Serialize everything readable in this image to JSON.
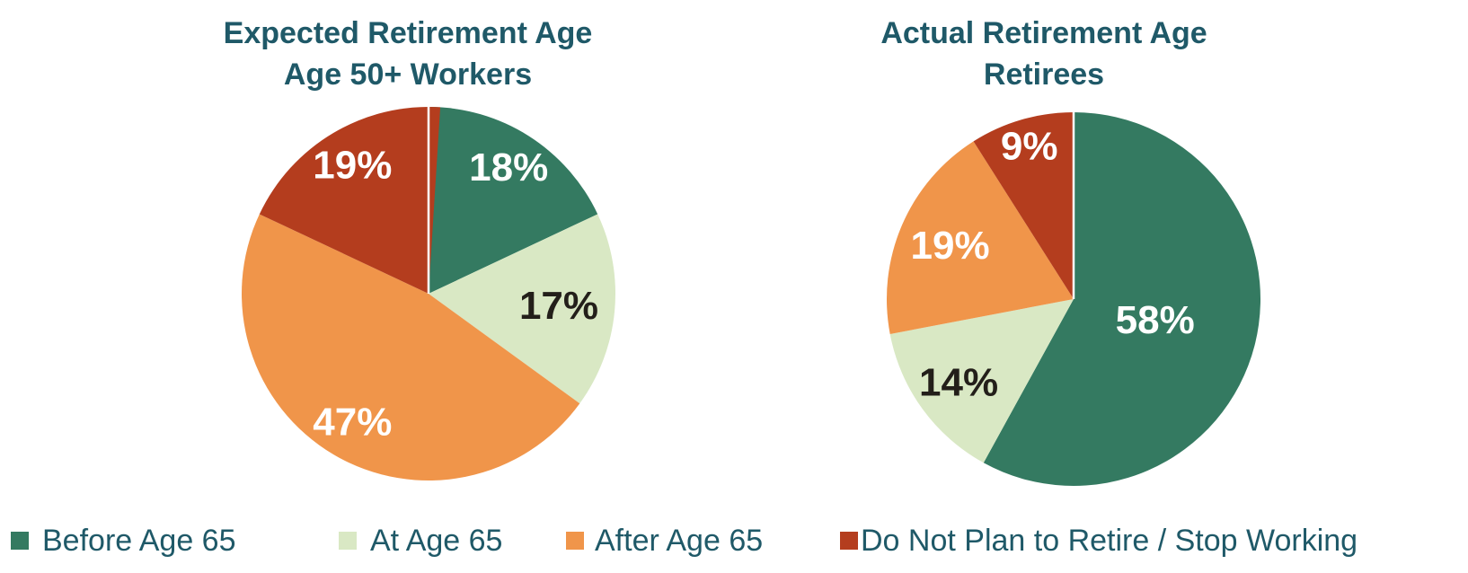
{
  "theme": {
    "background": "#FFFFFF",
    "title_color": "#1F5968",
    "legend_text_color": "#1F5968",
    "dark_label_color": "#231F1A",
    "light_label_color": "#FFFFFF"
  },
  "chart_data": [
    {
      "type": "pie",
      "title": "Expected Retirement Age",
      "subtitle": "Age 50+ Workers",
      "start_angle_deg": 0,
      "direction": "clockwise",
      "legend_position": "bottom",
      "slices": [
        {
          "label": "Before Age 65",
          "value_pct": 18,
          "data_label": "18%",
          "color": "#347A61",
          "label_color": "#FFFFFF",
          "label_radius_frac": 0.8
        },
        {
          "label": "At Age 65",
          "value_pct": 17,
          "data_label": "17%",
          "color": "#D9E8C4",
          "label_color": "#231F1A",
          "label_radius_frac": 0.7
        },
        {
          "label": "After Age 65",
          "value_pct": 47,
          "data_label": "47%",
          "color": "#F0954A",
          "label_color": "#FFFFFF",
          "label_radius_frac": 0.8
        },
        {
          "label": "Do Not Plan to Retire / Stop Working",
          "value_pct": 19,
          "data_label": "19%",
          "color": "#B43D1E",
          "label_color": "#FFFFFF",
          "label_radius_frac": 0.8
        }
      ]
    },
    {
      "type": "pie",
      "title": "Actual Retirement Age",
      "subtitle": "Retirees",
      "start_angle_deg": 0,
      "direction": "clockwise",
      "legend_position": "bottom",
      "slices": [
        {
          "label": "Before Age 65",
          "value_pct": 58,
          "data_label": "58%",
          "color": "#347A61",
          "label_color": "#FFFFFF",
          "label_radius_frac": 0.45
        },
        {
          "label": "At Age 65",
          "value_pct": 14,
          "data_label": "14%",
          "color": "#D9E8C4",
          "label_color": "#231F1A",
          "label_radius_frac": 0.76
        },
        {
          "label": "After Age 65",
          "value_pct": 19,
          "data_label": "19%",
          "color": "#F0954A",
          "label_color": "#FFFFFF",
          "label_radius_frac": 0.72
        },
        {
          "label": "Do Not Plan to Retire / Stop Working",
          "value_pct": 9,
          "data_label": "9%",
          "color": "#B43D1E",
          "label_color": "#FFFFFF",
          "label_radius_frac": 0.85
        }
      ]
    }
  ],
  "legend": {
    "items": [
      {
        "label": "Before Age 65",
        "color": "#347A61"
      },
      {
        "label": "At Age 65",
        "color": "#D9E8C4"
      },
      {
        "label": "After Age 65",
        "color": "#F0954A"
      },
      {
        "label": "Do Not Plan to Retire / Stop Working",
        "color": "#B43D1E"
      }
    ]
  }
}
